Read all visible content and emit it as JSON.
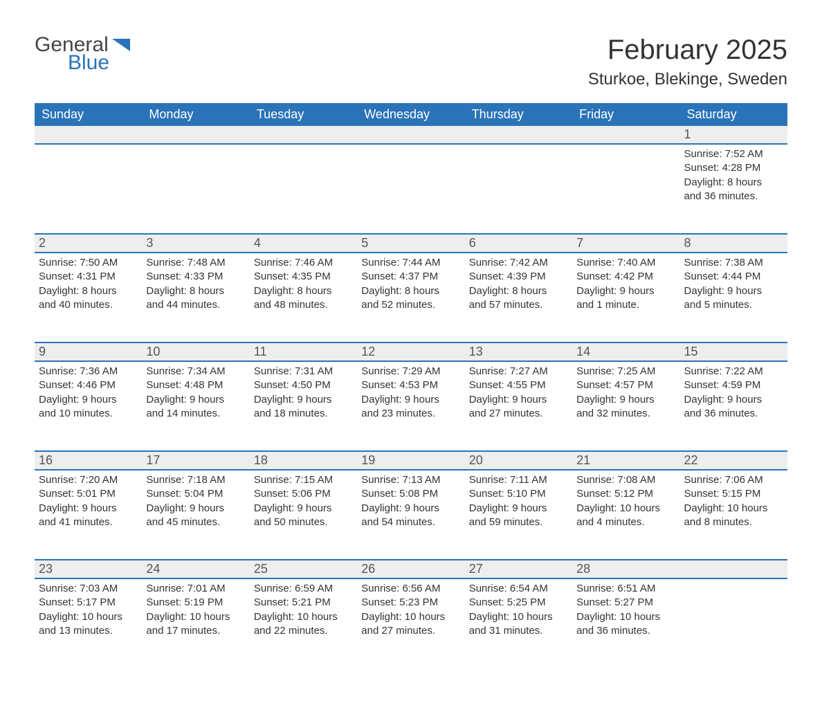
{
  "logo": {
    "word1": "General",
    "word2": "Blue",
    "icon_color": "#2a73b8"
  },
  "title": "February 2025",
  "location": "Sturkoe, Blekinge, Sweden",
  "colors": {
    "header_bg": "#2a73b8",
    "header_text": "#ffffff",
    "row_border": "#2a73b8",
    "daynum_bg": "#eeeeee",
    "body_text": "#333333"
  },
  "fonts": {
    "title_size": 40,
    "location_size": 24,
    "header_size": 18,
    "body_size": 15
  },
  "weekdays": [
    "Sunday",
    "Monday",
    "Tuesday",
    "Wednesday",
    "Thursday",
    "Friday",
    "Saturday"
  ],
  "weeks": [
    [
      null,
      null,
      null,
      null,
      null,
      null,
      {
        "n": "1",
        "sunrise": "Sunrise: 7:52 AM",
        "sunset": "Sunset: 4:28 PM",
        "daylight1": "Daylight: 8 hours",
        "daylight2": "and 36 minutes."
      }
    ],
    [
      {
        "n": "2",
        "sunrise": "Sunrise: 7:50 AM",
        "sunset": "Sunset: 4:31 PM",
        "daylight1": "Daylight: 8 hours",
        "daylight2": "and 40 minutes."
      },
      {
        "n": "3",
        "sunrise": "Sunrise: 7:48 AM",
        "sunset": "Sunset: 4:33 PM",
        "daylight1": "Daylight: 8 hours",
        "daylight2": "and 44 minutes."
      },
      {
        "n": "4",
        "sunrise": "Sunrise: 7:46 AM",
        "sunset": "Sunset: 4:35 PM",
        "daylight1": "Daylight: 8 hours",
        "daylight2": "and 48 minutes."
      },
      {
        "n": "5",
        "sunrise": "Sunrise: 7:44 AM",
        "sunset": "Sunset: 4:37 PM",
        "daylight1": "Daylight: 8 hours",
        "daylight2": "and 52 minutes."
      },
      {
        "n": "6",
        "sunrise": "Sunrise: 7:42 AM",
        "sunset": "Sunset: 4:39 PM",
        "daylight1": "Daylight: 8 hours",
        "daylight2": "and 57 minutes."
      },
      {
        "n": "7",
        "sunrise": "Sunrise: 7:40 AM",
        "sunset": "Sunset: 4:42 PM",
        "daylight1": "Daylight: 9 hours",
        "daylight2": "and 1 minute."
      },
      {
        "n": "8",
        "sunrise": "Sunrise: 7:38 AM",
        "sunset": "Sunset: 4:44 PM",
        "daylight1": "Daylight: 9 hours",
        "daylight2": "and 5 minutes."
      }
    ],
    [
      {
        "n": "9",
        "sunrise": "Sunrise: 7:36 AM",
        "sunset": "Sunset: 4:46 PM",
        "daylight1": "Daylight: 9 hours",
        "daylight2": "and 10 minutes."
      },
      {
        "n": "10",
        "sunrise": "Sunrise: 7:34 AM",
        "sunset": "Sunset: 4:48 PM",
        "daylight1": "Daylight: 9 hours",
        "daylight2": "and 14 minutes."
      },
      {
        "n": "11",
        "sunrise": "Sunrise: 7:31 AM",
        "sunset": "Sunset: 4:50 PM",
        "daylight1": "Daylight: 9 hours",
        "daylight2": "and 18 minutes."
      },
      {
        "n": "12",
        "sunrise": "Sunrise: 7:29 AM",
        "sunset": "Sunset: 4:53 PM",
        "daylight1": "Daylight: 9 hours",
        "daylight2": "and 23 minutes."
      },
      {
        "n": "13",
        "sunrise": "Sunrise: 7:27 AM",
        "sunset": "Sunset: 4:55 PM",
        "daylight1": "Daylight: 9 hours",
        "daylight2": "and 27 minutes."
      },
      {
        "n": "14",
        "sunrise": "Sunrise: 7:25 AM",
        "sunset": "Sunset: 4:57 PM",
        "daylight1": "Daylight: 9 hours",
        "daylight2": "and 32 minutes."
      },
      {
        "n": "15",
        "sunrise": "Sunrise: 7:22 AM",
        "sunset": "Sunset: 4:59 PM",
        "daylight1": "Daylight: 9 hours",
        "daylight2": "and 36 minutes."
      }
    ],
    [
      {
        "n": "16",
        "sunrise": "Sunrise: 7:20 AM",
        "sunset": "Sunset: 5:01 PM",
        "daylight1": "Daylight: 9 hours",
        "daylight2": "and 41 minutes."
      },
      {
        "n": "17",
        "sunrise": "Sunrise: 7:18 AM",
        "sunset": "Sunset: 5:04 PM",
        "daylight1": "Daylight: 9 hours",
        "daylight2": "and 45 minutes."
      },
      {
        "n": "18",
        "sunrise": "Sunrise: 7:15 AM",
        "sunset": "Sunset: 5:06 PM",
        "daylight1": "Daylight: 9 hours",
        "daylight2": "and 50 minutes."
      },
      {
        "n": "19",
        "sunrise": "Sunrise: 7:13 AM",
        "sunset": "Sunset: 5:08 PM",
        "daylight1": "Daylight: 9 hours",
        "daylight2": "and 54 minutes."
      },
      {
        "n": "20",
        "sunrise": "Sunrise: 7:11 AM",
        "sunset": "Sunset: 5:10 PM",
        "daylight1": "Daylight: 9 hours",
        "daylight2": "and 59 minutes."
      },
      {
        "n": "21",
        "sunrise": "Sunrise: 7:08 AM",
        "sunset": "Sunset: 5:12 PM",
        "daylight1": "Daylight: 10 hours",
        "daylight2": "and 4 minutes."
      },
      {
        "n": "22",
        "sunrise": "Sunrise: 7:06 AM",
        "sunset": "Sunset: 5:15 PM",
        "daylight1": "Daylight: 10 hours",
        "daylight2": "and 8 minutes."
      }
    ],
    [
      {
        "n": "23",
        "sunrise": "Sunrise: 7:03 AM",
        "sunset": "Sunset: 5:17 PM",
        "daylight1": "Daylight: 10 hours",
        "daylight2": "and 13 minutes."
      },
      {
        "n": "24",
        "sunrise": "Sunrise: 7:01 AM",
        "sunset": "Sunset: 5:19 PM",
        "daylight1": "Daylight: 10 hours",
        "daylight2": "and 17 minutes."
      },
      {
        "n": "25",
        "sunrise": "Sunrise: 6:59 AM",
        "sunset": "Sunset: 5:21 PM",
        "daylight1": "Daylight: 10 hours",
        "daylight2": "and 22 minutes."
      },
      {
        "n": "26",
        "sunrise": "Sunrise: 6:56 AM",
        "sunset": "Sunset: 5:23 PM",
        "daylight1": "Daylight: 10 hours",
        "daylight2": "and 27 minutes."
      },
      {
        "n": "27",
        "sunrise": "Sunrise: 6:54 AM",
        "sunset": "Sunset: 5:25 PM",
        "daylight1": "Daylight: 10 hours",
        "daylight2": "and 31 minutes."
      },
      {
        "n": "28",
        "sunrise": "Sunrise: 6:51 AM",
        "sunset": "Sunset: 5:27 PM",
        "daylight1": "Daylight: 10 hours",
        "daylight2": "and 36 minutes."
      },
      null
    ]
  ]
}
